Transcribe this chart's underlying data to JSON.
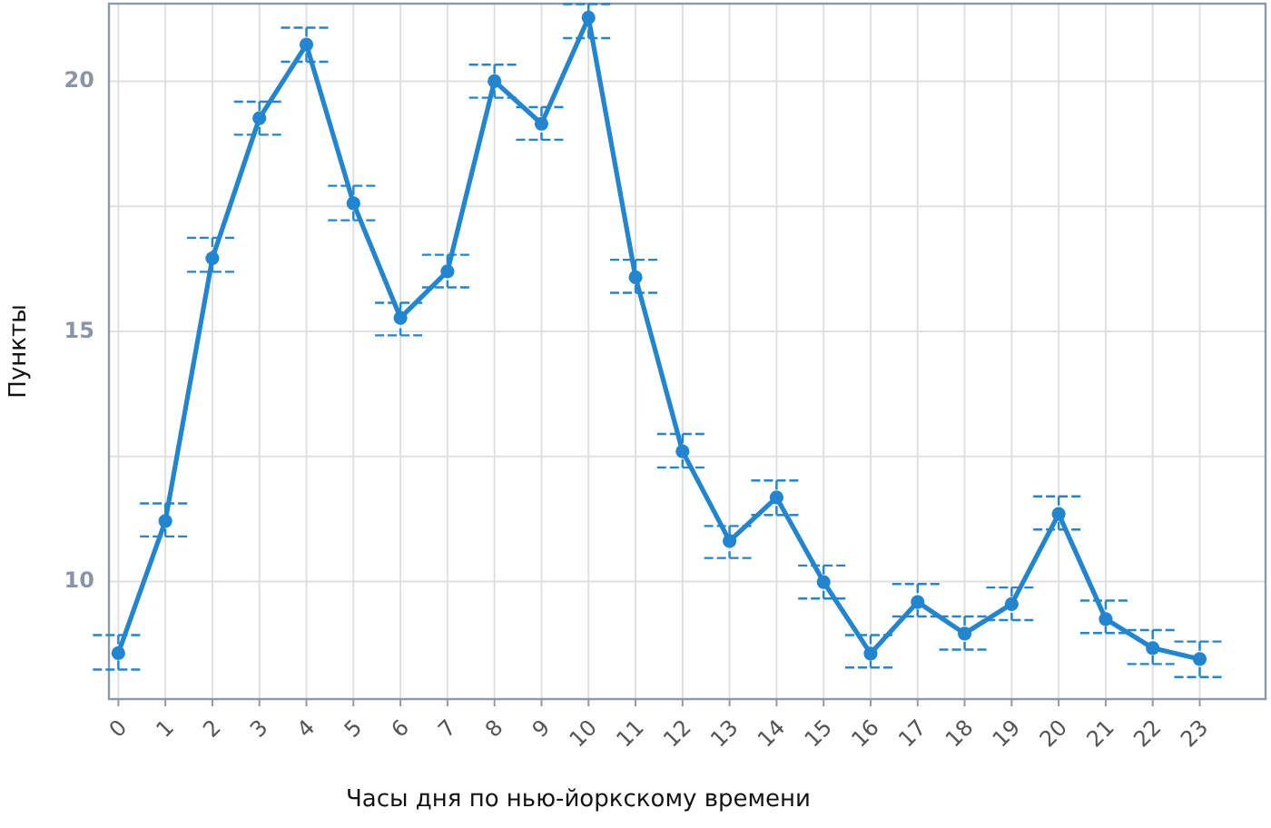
{
  "chart_data": {
    "type": "line",
    "xlabel": "Часы дня по нью-йоркскому времени",
    "ylabel": "Пункты",
    "x": [
      0,
      1,
      2,
      3,
      4,
      5,
      6,
      7,
      8,
      9,
      10,
      11,
      12,
      13,
      14,
      15,
      16,
      17,
      18,
      19,
      20,
      21,
      22,
      23
    ],
    "series": [
      {
        "color": "#2285d0",
        "values": [
          8.57,
          11.21,
          16.46,
          19.26,
          20.73,
          17.56,
          15.27,
          16.2,
          20.0,
          19.15,
          21.27,
          16.08,
          12.6,
          10.81,
          11.68,
          9.99,
          8.56,
          9.59,
          8.96,
          9.55,
          11.35,
          9.25,
          8.67,
          8.45
        ],
        "errors": [
          [
            8.24,
            8.93
          ],
          [
            10.9,
            11.56
          ],
          [
            16.19,
            16.87
          ],
          [
            18.93,
            19.59
          ],
          [
            20.39,
            21.07
          ],
          [
            17.22,
            17.91
          ],
          [
            14.92,
            15.57
          ],
          [
            15.88,
            16.53
          ],
          [
            19.67,
            20.33
          ],
          [
            18.83,
            19.48
          ],
          [
            20.86,
            21.54
          ],
          [
            15.77,
            16.43
          ],
          [
            12.28,
            12.95
          ],
          [
            10.47,
            11.11
          ],
          [
            11.33,
            12.02
          ],
          [
            9.66,
            10.32
          ],
          [
            8.28,
            8.93
          ],
          [
            9.3,
            9.95
          ],
          [
            8.64,
            9.3
          ],
          [
            9.23,
            9.88
          ],
          [
            11.04,
            11.7
          ],
          [
            8.97,
            9.62
          ],
          [
            8.35,
            9.03
          ],
          [
            8.09,
            8.8
          ]
        ]
      }
    ],
    "xlim": [
      -0.2,
      24.4
    ],
    "xticks": [
      0,
      1,
      2,
      3,
      4,
      5,
      6,
      7,
      8,
      9,
      10,
      11,
      12,
      13,
      14,
      15,
      16,
      17,
      18,
      19,
      20,
      21,
      22,
      23
    ],
    "ylim": [
      7.65,
      21.55
    ],
    "yticks": [
      10,
      {
        "value": 12.5,
        "label": null
      },
      15,
      {
        "value": 17.5,
        "label": null
      },
      20
    ],
    "grid": true,
    "marker": "circle",
    "line_style": "solid"
  }
}
